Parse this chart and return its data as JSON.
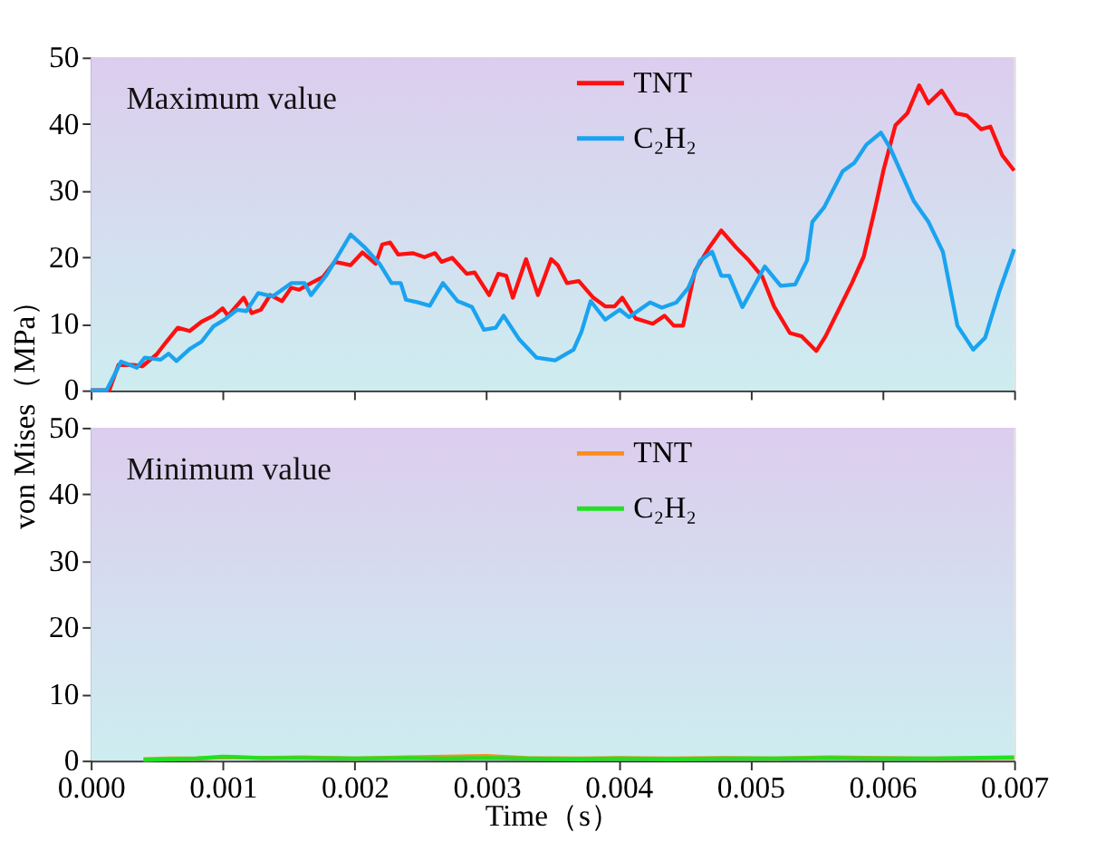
{
  "chart_data": [
    {
      "type": "line",
      "annotations": [
        "Maximum value"
      ],
      "xlim": [
        0,
        0.007
      ],
      "ylim": [
        0,
        50
      ],
      "xticks": [
        0,
        0.001,
        0.002,
        0.003,
        0.004,
        0.005,
        0.006,
        0.007
      ],
      "yticks": [
        0,
        10,
        20,
        30,
        40,
        50
      ],
      "tick_labels": "y",
      "grid": false,
      "legend": "top right",
      "marker": "none",
      "line_style": "solid",
      "series": [
        {
          "name": "TNT",
          "color": "#ff1010",
          "x": [
            0,
            0.00014,
            0.00021,
            0.00032,
            0.00039,
            0.0005,
            0.00057,
            0.00066,
            0.00075,
            0.00084,
            0.00093,
            0.001,
            0.00104,
            0.00116,
            0.00122,
            0.00129,
            0.00136,
            0.00145,
            0.00152,
            0.00158,
            0.00167,
            0.00176,
            0.00185,
            0.00197,
            0.00206,
            0.00216,
            0.00221,
            0.00227,
            0.00233,
            0.00244,
            0.00253,
            0.00261,
            0.00266,
            0.00274,
            0.00285,
            0.00291,
            0.00302,
            0.00309,
            0.00315,
            0.0032,
            0.0033,
            0.00339,
            0.00349,
            0.00354,
            0.00361,
            0.0037,
            0.00381,
            0.0039,
            0.00397,
            0.00403,
            0.00413,
            0.00426,
            0.00435,
            0.00442,
            0.00449,
            0.00458,
            0.00469,
            0.00478,
            0.00489,
            0.00498,
            0.00509,
            0.00518,
            0.0053,
            0.00539,
            0.0055,
            0.00557,
            0.00566,
            0.00577,
            0.00586,
            0.00595,
            0.00601,
            0.0061,
            0.00619,
            0.00628,
            0.00635,
            0.00645,
            0.00656,
            0.00664,
            0.00675,
            0.00682,
            0.00691,
            0.007
          ],
          "values": [
            0,
            0,
            3.8,
            3.8,
            3.6,
            5.4,
            7.2,
            9.4,
            8.9,
            10.3,
            11.2,
            12.3,
            11.2,
            13.9,
            11.6,
            12.1,
            14.3,
            13.4,
            15.4,
            15.1,
            16.1,
            17,
            19.3,
            18.8,
            20.7,
            19,
            21.9,
            22.2,
            20.4,
            20.6,
            20,
            20.6,
            19.3,
            19.9,
            17.5,
            17.7,
            14.3,
            17.5,
            17.2,
            13.9,
            19.7,
            14.3,
            19.7,
            18.8,
            16.1,
            16.4,
            13.9,
            12.6,
            12.6,
            13.9,
            10.8,
            10,
            11.2,
            9.7,
            9.7,
            17.9,
            21.5,
            24,
            21.5,
            19.7,
            17.1,
            12.6,
            8.6,
            8.1,
            5.9,
            8.1,
            11.7,
            16.1,
            20.1,
            27.7,
            33.1,
            39.8,
            41.6,
            45.8,
            43.1,
            45,
            41.6,
            41.3,
            39.2,
            39.6,
            35.3,
            33
          ]
        },
        {
          "name": "C₂H₂",
          "color": "#1aa3f0",
          "x": [
            0,
            0.00012,
            0.00023,
            0.00035,
            0.00041,
            0.00053,
            0.00059,
            0.00065,
            0.00075,
            0.00084,
            0.00093,
            0.00102,
            0.00111,
            0.00118,
            0.00127,
            0.00138,
            0.00152,
            0.00162,
            0.00167,
            0.00179,
            0.00197,
            0.00208,
            0.00219,
            0.00228,
            0.00235,
            0.00239,
            0.00248,
            0.00257,
            0.00267,
            0.00278,
            0.00289,
            0.00298,
            0.00307,
            0.00313,
            0.00325,
            0.00338,
            0.00352,
            0.00366,
            0.00372,
            0.00379,
            0.0039,
            0.00401,
            0.00408,
            0.00424,
            0.00433,
            0.00444,
            0.00453,
            0.00462,
            0.00471,
            0.00478,
            0.00484,
            0.00494,
            0.00511,
            0.00523,
            0.00534,
            0.00543,
            0.00547,
            0.00556,
            0.0057,
            0.00579,
            0.00588,
            0.00599,
            0.00606,
            0.00624,
            0.00635,
            0.00646,
            0.00657,
            0.00669,
            0.00678,
            0.00689,
            0.007
          ],
          "values": [
            0,
            0,
            4.3,
            3.4,
            4.9,
            4.6,
            5.5,
            4.4,
            6.2,
            7.3,
            9.6,
            10.7,
            12.1,
            11.9,
            14.6,
            14.1,
            16.1,
            16.1,
            14.3,
            17.4,
            23.4,
            21.4,
            19,
            16.1,
            16.1,
            13.6,
            13.2,
            12.7,
            16.1,
            13.4,
            12.5,
            9.1,
            9.4,
            11.2,
            7.6,
            4.9,
            4.5,
            6.1,
            8.8,
            13.4,
            10.6,
            12.1,
            11,
            13.2,
            12.4,
            13.2,
            15.4,
            19.5,
            20.8,
            17.2,
            17.2,
            12.5,
            18.6,
            15.7,
            15.9,
            19.5,
            25.3,
            27.5,
            32.9,
            34.2,
            36.9,
            38.7,
            36.4,
            28.4,
            25.3,
            20.8,
            9.7,
            6.1,
            7.9,
            15,
            21.2
          ]
        }
      ]
    },
    {
      "type": "line",
      "annotations": [
        "Minimum value"
      ],
      "xlabel": "Time（s）",
      "ylabel": "von Mises（MPa）",
      "xlim": [
        0,
        0.007
      ],
      "ylim": [
        0,
        50
      ],
      "xticks": [
        {
          "value": 0,
          "label": "0.000"
        },
        0.001,
        0.002,
        0.003,
        0.004,
        0.005,
        0.006,
        0.007
      ],
      "yticks": [
        0,
        10,
        20,
        30,
        40,
        50
      ],
      "grid": false,
      "legend": "top right",
      "marker": "none",
      "line_style": "solid",
      "series": [
        {
          "name": "TNT",
          "color": "#ff8c1a",
          "x": [
            0.0004,
            0.0006,
            0.0008,
            0.001,
            0.0013,
            0.0016,
            0.002,
            0.0024,
            0.0027,
            0.003,
            0.0033,
            0.0037,
            0.004,
            0.0044,
            0.0048,
            0.0052,
            0.0056,
            0.006,
            0.0064,
            0.007
          ],
          "values": [
            0.2,
            0.3,
            0.3,
            0.5,
            0.4,
            0.5,
            0.3,
            0.5,
            0.6,
            0.7,
            0.4,
            0.3,
            0.4,
            0.3,
            0.4,
            0.3,
            0.5,
            0.4,
            0.3,
            0.4
          ]
        },
        {
          "name": "C₂H₂",
          "color": "#22e022",
          "x": [
            0.0004,
            0.0006,
            0.0008,
            0.001,
            0.0013,
            0.0016,
            0.002,
            0.0024,
            0.0027,
            0.003,
            0.0033,
            0.0037,
            0.004,
            0.0044,
            0.0048,
            0.0052,
            0.0056,
            0.006,
            0.0064,
            0.007
          ],
          "values": [
            0.1,
            0.2,
            0.3,
            0.6,
            0.4,
            0.4,
            0.3,
            0.4,
            0.3,
            0.4,
            0.3,
            0.2,
            0.3,
            0.2,
            0.3,
            0.3,
            0.4,
            0.3,
            0.3,
            0.5
          ]
        }
      ]
    }
  ]
}
